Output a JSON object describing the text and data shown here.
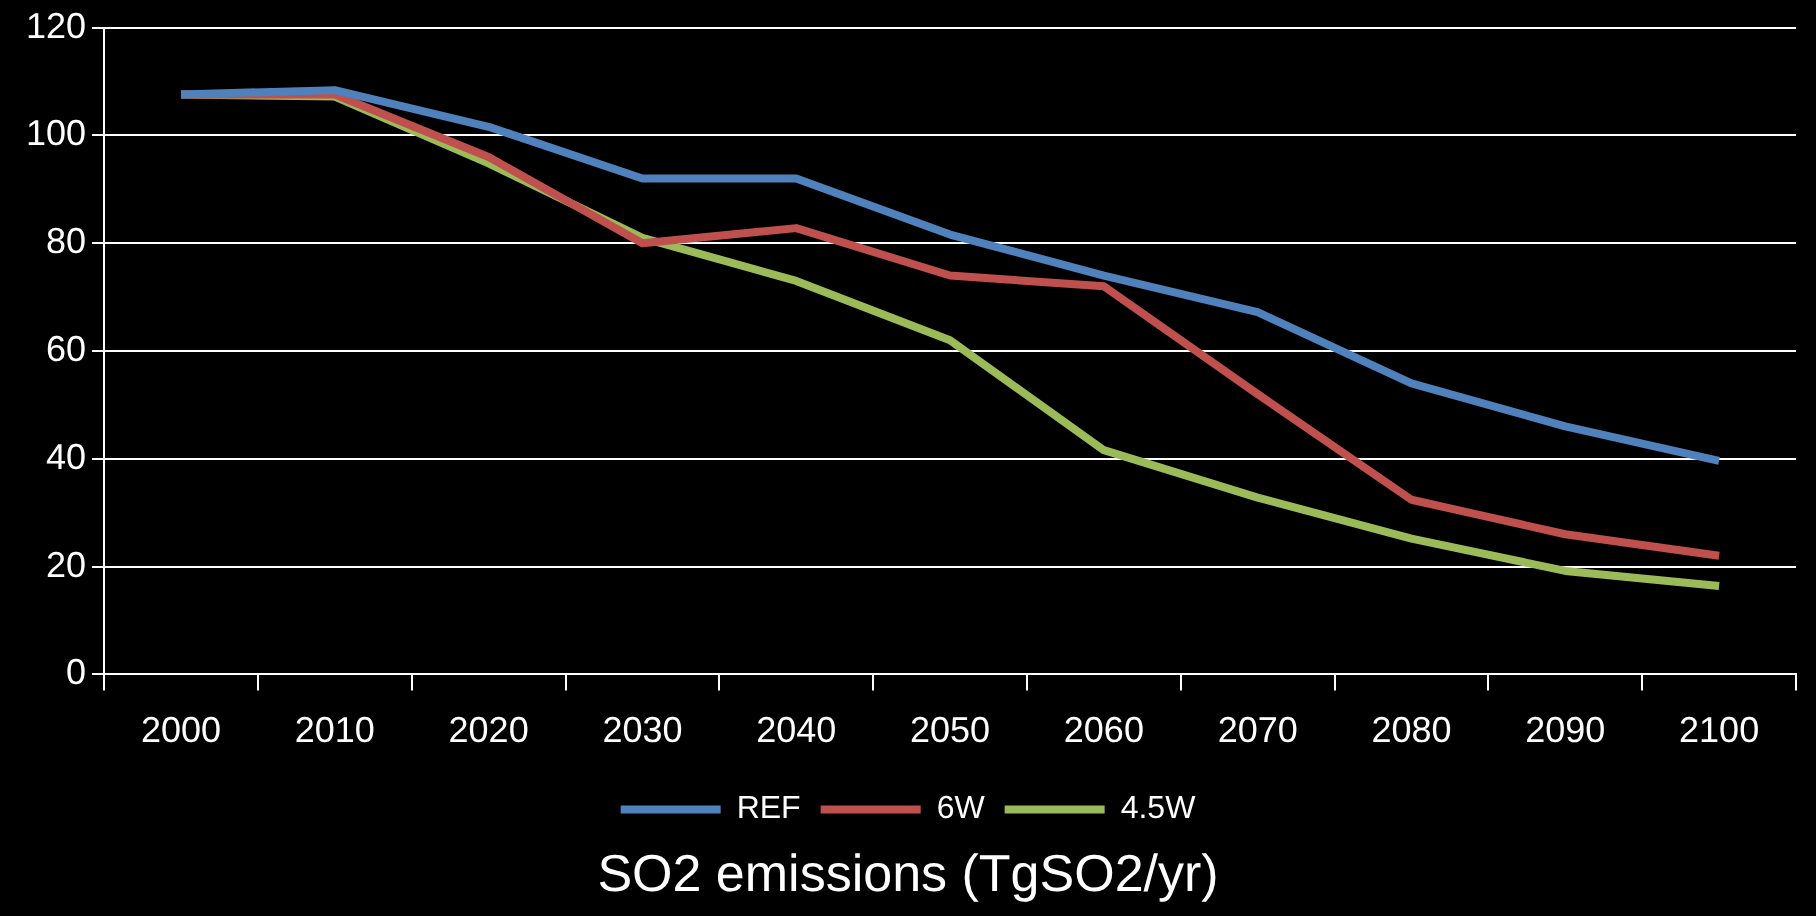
{
  "chart_data": {
    "type": "line",
    "title": "SO2 emissions (TgSO2/yr)",
    "categories": [
      "2000",
      "2010",
      "2020",
      "2030",
      "2040",
      "2050",
      "2060",
      "2070",
      "2080",
      "2090",
      "2100"
    ],
    "series": [
      {
        "name": "REF",
        "color": "#4f81bd",
        "values": [
          107.6,
          108.4,
          101.6,
          92,
          92,
          81.6,
          74,
          67.2,
          54,
          46,
          39.6
        ]
      },
      {
        "name": "6W",
        "color": "#c0504d",
        "values": [
          107.6,
          107.6,
          96,
          80,
          82.8,
          74,
          72,
          52,
          32.4,
          26,
          22
        ]
      },
      {
        "name": "4.5W",
        "color": "#9bbb59",
        "values": [
          107.6,
          107.2,
          94.8,
          81,
          73,
          62,
          41.6,
          32.8,
          25.2,
          19.2,
          16.4
        ]
      }
    ],
    "ylim": [
      0,
      120
    ],
    "yticks": [
      0,
      20,
      40,
      60,
      80,
      100,
      120
    ],
    "grid": "y",
    "legend": "bottom",
    "marker": "none",
    "line_style": "solid"
  }
}
